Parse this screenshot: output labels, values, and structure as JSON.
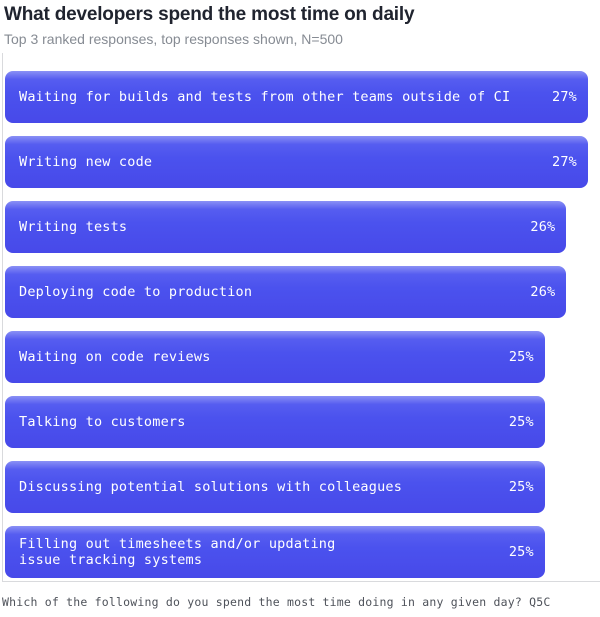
{
  "chart_data": {
    "type": "bar",
    "orientation": "horizontal",
    "title": "What developers spend the most time on daily",
    "subtitle": "Top 3 ranked responses, top responses shown, N=500",
    "footnote": "Which of the following do you spend the most time doing in any given day? Q5C",
    "categories": [
      "Waiting for builds and tests from other teams outside of CI",
      "Writing new code",
      "Writing tests",
      "Deploying code to production",
      "Waiting on code reviews",
      "Talking to customers",
      "Discussing potential solutions with colleagues",
      "Filling out timesheets and/or updating\nissue tracking systems"
    ],
    "values": [
      27,
      27,
      26,
      26,
      25,
      25,
      25,
      25
    ],
    "value_suffix": "%",
    "xlim": [
      0,
      27
    ],
    "grid": false,
    "legend": false,
    "value_labels_position": "inside-right",
    "colors": {
      "bar": "#4b52ee",
      "bar_highlight": "#8a90f5",
      "bar_text": "#ffffff",
      "title_text": "#20242f",
      "subtitle_text": "#868b93",
      "footnote_text": "#4e525a",
      "axis_line": "#d9dadd",
      "background": "#ffffff"
    }
  }
}
